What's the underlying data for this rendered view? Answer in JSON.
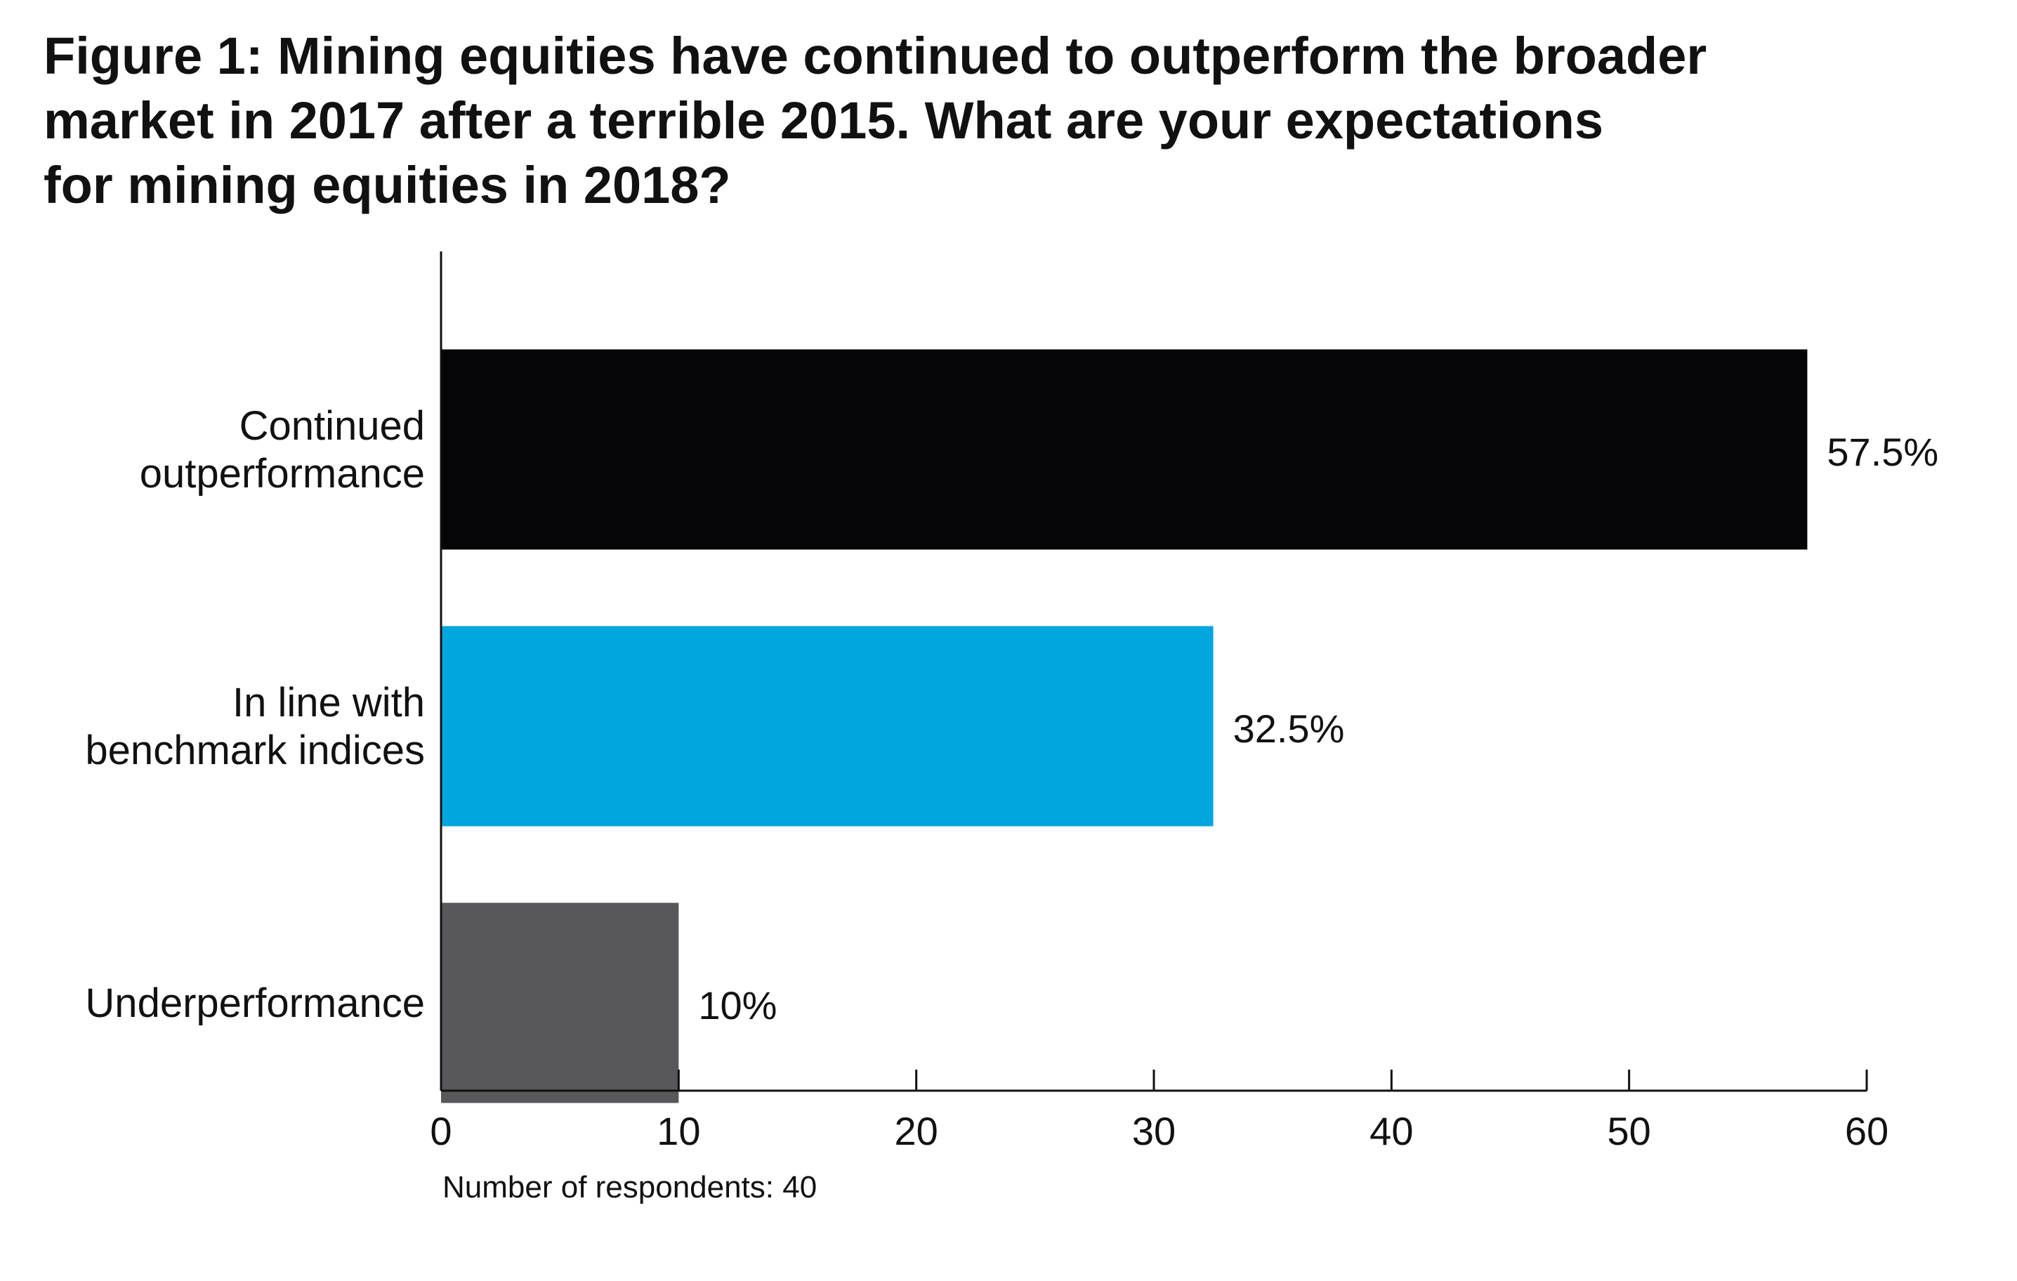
{
  "chart_data": {
    "type": "bar",
    "orientation": "horizontal",
    "title_lines": [
      "Figure 1: Mining equities have continued to outperform the broader",
      "market in 2017 after a terrible 2015. What are your expectations",
      "for mining equities in 2018?"
    ],
    "categories": [
      [
        "Continued",
        "outperformance"
      ],
      [
        "In line with",
        "benchmark indices"
      ],
      [
        "Underperformance"
      ]
    ],
    "values": [
      57.5,
      32.5,
      10
    ],
    "data_labels": [
      "57.5%",
      "32.5%",
      "10%"
    ],
    "colors": [
      "#050507",
      "#00a6dd",
      "#58585a"
    ],
    "xlim": [
      0,
      60
    ],
    "xticks": [
      0,
      10,
      20,
      30,
      40,
      50,
      60
    ],
    "xlabel": "",
    "ylabel": "",
    "grid": false,
    "legend": "none",
    "note": "Number of respondents: 40"
  }
}
